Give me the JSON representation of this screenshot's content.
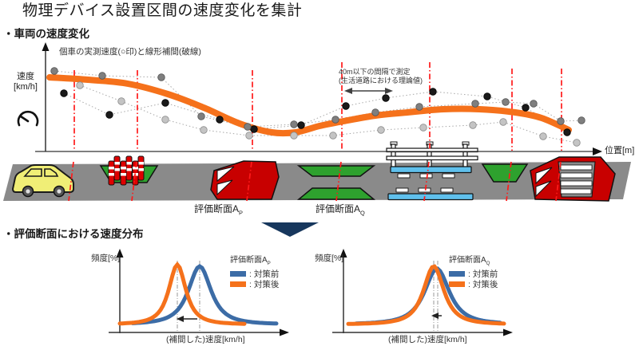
{
  "page": {
    "title": "物理デバイス設置区間の速度変化を集計"
  },
  "sections": {
    "speed_change_heading": "・車両の速度変化",
    "distribution_heading": "・評価断面における速度分布"
  },
  "speed_chart": {
    "annotation": "個車の実測速度(○印)と線形補間(破線)",
    "ylabel": "速度\n[km/h]",
    "xlabel": "位置[m]",
    "measure_note": "40m以下の間隔で測定\n(生活道路における理論値)"
  },
  "road": {
    "section_p_label": "評価断面A",
    "section_p_sub": "P",
    "section_q_label": "評価断面A",
    "section_q_sub": "Q"
  },
  "dist_left": {
    "ylabel": "頻度[%]",
    "xlabel": "(補間した)速度[km/h]",
    "legend_title": "評価断面A",
    "legend_sub": "P",
    "legend_before": ": 対策前",
    "legend_after": ": 対策後"
  },
  "dist_right": {
    "ylabel": "頻度[%]",
    "xlabel": "(補間した)速度[km/h]",
    "legend_title": "評価断面A",
    "legend_sub": "Q",
    "legend_before": ": 対策前",
    "legend_after": ": 対策後"
  },
  "colors": {
    "before": "#3C6CA6",
    "after": "#F5711B",
    "profile_curve": "#F5711B",
    "section_line": "#FF1A1A",
    "connector": "#A8A8A8",
    "marker_line": "#999999",
    "navy_arrow": "#17375D",
    "road_gray": "#8A8A8A",
    "device_green": "#2EA12E",
    "device_red": "#C80000",
    "strip_blue": "#5FC0EC",
    "car_yellow": "#F0EE76"
  },
  "chart_data": [
    {
      "type": "line",
      "title": "車両の速度変化",
      "xlabel": "位置[m]",
      "ylabel": "速度[km/h]",
      "axis_units": "schematic (no tick labels), coordinates in page px",
      "section_lines": [
        {
          "x": 93,
          "y_top": 88
        },
        {
          "x": 172,
          "y_top": 88
        },
        {
          "x": 316,
          "y_top": 88
        },
        {
          "x": 428,
          "y_top": 78
        },
        {
          "x": 538,
          "y_top": 78
        },
        {
          "x": 641,
          "y_top": 86
        },
        {
          "x": 703,
          "y_top": 86
        }
      ],
      "smoothed_curve": {
        "color": "#F5711B",
        "stroke_width": 8,
        "points": [
          [
            62,
            97
          ],
          [
            110,
            100
          ],
          [
            160,
            105
          ],
          [
            210,
            118
          ],
          [
            255,
            135
          ],
          [
            300,
            155
          ],
          [
            340,
            166
          ],
          [
            370,
            166
          ],
          [
            400,
            158
          ],
          [
            430,
            152
          ],
          [
            470,
            145
          ],
          [
            510,
            141
          ],
          [
            555,
            137
          ],
          [
            600,
            137
          ],
          [
            645,
            141
          ],
          [
            678,
            148
          ],
          [
            712,
            163
          ]
        ]
      },
      "scatter_series": [
        {
          "name": "vehicle-1",
          "color": "#1A1A1A",
          "edge": "#000000",
          "points": [
            [
              80,
              117
            ],
            [
              137,
              144
            ],
            [
              207,
              129
            ],
            [
              275,
              150
            ],
            [
              318,
              162
            ],
            [
              377,
              157
            ],
            [
              433,
              133
            ],
            [
              483,
              123
            ],
            [
              542,
              115
            ],
            [
              610,
              121
            ],
            [
              658,
              135
            ],
            [
              710,
              166
            ]
          ]
        },
        {
          "name": "vehicle-2",
          "color": "#7F7F7F",
          "edge": "#555555",
          "points": [
            [
              68,
              89
            ],
            [
              128,
              95
            ],
            [
              202,
              97
            ],
            [
              252,
              146
            ],
            [
              310,
              159
            ],
            [
              368,
              156
            ],
            [
              420,
              150
            ],
            [
              470,
              141
            ],
            [
              525,
              134
            ],
            [
              595,
              130
            ],
            [
              633,
              128
            ],
            [
              668,
              130
            ],
            [
              702,
              152
            ],
            [
              728,
              151
            ]
          ]
        },
        {
          "name": "vehicle-3",
          "color": "#C4C4C4",
          "edge": "#8C8C8C",
          "points": [
            [
              100,
              107
            ],
            [
              152,
              127
            ],
            [
              207,
              150
            ],
            [
              255,
              163
            ],
            [
              312,
              170
            ],
            [
              368,
              170
            ],
            [
              417,
              170
            ],
            [
              477,
              163
            ],
            [
              530,
              160
            ],
            [
              592,
              157
            ],
            [
              630,
              153
            ],
            [
              680,
              171
            ],
            [
              722,
              179
            ]
          ]
        }
      ]
    },
    {
      "type": "line",
      "section": "A_P",
      "xlabel": "(補間した)速度[km/h]",
      "ylabel": "頻度[%]",
      "base_y": 407,
      "curves": [
        {
          "name": "対策前",
          "color": "#3C6CA6",
          "peak_x": 250,
          "peak_height": 73,
          "width": 20,
          "x_range": [
            166,
            346
          ]
        },
        {
          "name": "対策後",
          "color": "#F5711B",
          "peak_x": 222,
          "peak_height": 75,
          "width": 15,
          "x_range": [
            150,
            308
          ]
        }
      ],
      "peak_marker_x": [
        222,
        250
      ],
      "shift_arrow": {
        "x_from": 247,
        "x_to": 223,
        "y": 400
      }
    },
    {
      "type": "line",
      "section": "A_Q",
      "xlabel": "(補間した)速度[km/h]",
      "ylabel": "頻度[%]",
      "base_y": 407,
      "curves": [
        {
          "name": "対策前",
          "color": "#3C6CA6",
          "peak_x": 547,
          "peak_height": 70,
          "width": 22,
          "x_range": [
            446,
            628
          ]
        },
        {
          "name": "対策後",
          "color": "#F5711B",
          "peak_x": 543,
          "peak_height": 73,
          "width": 18,
          "x_range": [
            436,
            632
          ]
        }
      ],
      "peak_marker_x": [
        543,
        548
      ],
      "shift_arrow": {
        "x_from": 553,
        "x_to": 542,
        "y": 396
      }
    }
  ]
}
